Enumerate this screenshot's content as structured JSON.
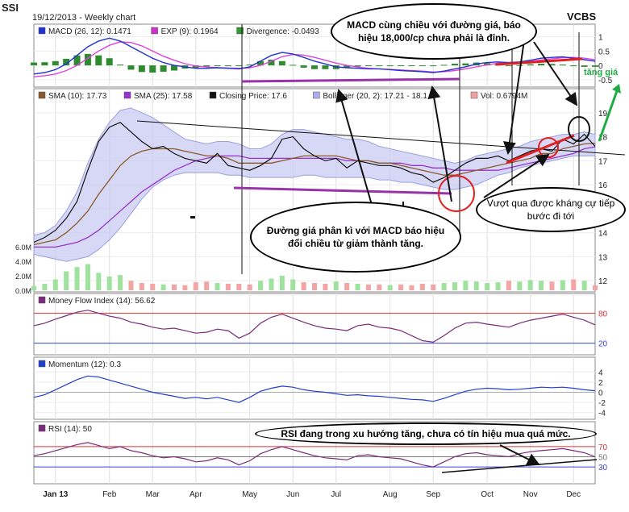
{
  "header": {
    "symbol": "SSI",
    "subtitle": "19/12/2013 - Weekly chart",
    "brand": "VCBS"
  },
  "legends": {
    "macd": [
      {
        "label": "MACD (26, 12): 0.1471",
        "color": "#2233cc"
      },
      {
        "label": "EXP (9): 0.1964",
        "color": "#cc33cc"
      },
      {
        "label": "Divergence: -0.0493",
        "color": "#339933"
      }
    ],
    "price": [
      {
        "label": "SMA (10): 17.73",
        "color": "#8b5a2b"
      },
      {
        "label": "SMA (25): 17.58",
        "color": "#9933cc"
      },
      {
        "label": "Closing Price: 17.6",
        "color": "#111111"
      },
      {
        "label": "Bollinger (20, 2): 17.21 - 18.1",
        "color": "#aab0ee"
      },
      {
        "label": "Vol: 0.6794M",
        "color": "#f0a0a0"
      }
    ],
    "mfi": "Money Flow Index (14): 56.62",
    "momentum": "Momentum (12): 0.3",
    "rsi": "RSI (14): 50"
  },
  "axis": {
    "macd_ticks": [
      "1",
      "0.5",
      "0",
      "-0.5"
    ],
    "price_ticks": [
      "19",
      "18",
      "17",
      "16",
      "15",
      "14",
      "13",
      "12"
    ],
    "volume_ticks": [
      "6.0M",
      "4.0M",
      "2.0M",
      "0.0M"
    ],
    "mfi_ticks": [
      "80",
      "20"
    ],
    "momentum_ticks": [
      "4",
      "2",
      "0",
      "-2",
      "-4"
    ],
    "rsi_ticks": [
      "70",
      "50",
      "30"
    ],
    "months": [
      "Jan 13",
      "Feb",
      "Mar",
      "Apr",
      "May",
      "Jun",
      "Jul",
      "Aug",
      "Sep",
      "Oct",
      "Nov",
      "Dec"
    ]
  },
  "annotations": {
    "macd_note": "MACD cùng chiều với đường giá, báo hiệu 18,000/cp chưa phải là đỉnh.",
    "divergence_note": "Đường giá phân kì với MACD báo hiệu đổi chiều từ giảm thành tăng.",
    "breakout_note": "Vượt qua được kháng cự tiếp bước đi tới",
    "rsi_note": "RSI đang trong xu hướng tăng, chưa có tín hiệu mua quá mức.",
    "uptrend_label": "tăng giá"
  },
  "colors": {
    "price_line": "#111111",
    "sma10": "#8b5a2b",
    "sma25": "#9933cc",
    "bollinger": "#c8cbf2",
    "vol_up": "#9ee29e",
    "vol_down": "#f3a5a5",
    "macd_line": "#2233cc",
    "signal_line": "#dd44dd",
    "hist": "#2e8b2e",
    "oscillator": "#7a2a7a",
    "momentum": "#1f3fcc",
    "annotation_red": "#e02020",
    "annotation_purple": "#9933aa",
    "uptrend_green": "#22aa44"
  },
  "chart_data": {
    "type": "line",
    "x": [
      "2012-12-21",
      "2012-12-28",
      "2013-01-04",
      "2013-01-11",
      "2013-01-18",
      "2013-01-25",
      "2013-02-01",
      "2013-02-08",
      "2013-02-15",
      "2013-02-22",
      "2013-03-01",
      "2013-03-08",
      "2013-03-15",
      "2013-03-22",
      "2013-03-29",
      "2013-04-05",
      "2013-04-12",
      "2013-04-19",
      "2013-04-26",
      "2013-05-03",
      "2013-05-10",
      "2013-05-17",
      "2013-05-24",
      "2013-05-31",
      "2013-06-07",
      "2013-06-14",
      "2013-06-21",
      "2013-06-28",
      "2013-07-05",
      "2013-07-12",
      "2013-07-19",
      "2013-07-26",
      "2013-08-02",
      "2013-08-09",
      "2013-08-16",
      "2013-08-23",
      "2013-08-30",
      "2013-09-06",
      "2013-09-13",
      "2013-09-20",
      "2013-09-27",
      "2013-10-04",
      "2013-10-11",
      "2013-10-18",
      "2013-10-25",
      "2013-11-01",
      "2013-11-08",
      "2013-11-15",
      "2013-11-22",
      "2013-11-29",
      "2013-12-06",
      "2013-12-13",
      "2013-12-19"
    ],
    "series": [
      {
        "name": "Closing Price",
        "values": [
          13.6,
          13.8,
          14.1,
          14.6,
          15.3,
          16.6,
          17.8,
          18.4,
          18.6,
          18.2,
          17.8,
          17.5,
          17.6,
          17.3,
          17.1,
          17.0,
          16.9,
          17.3,
          16.8,
          16.7,
          16.6,
          16.8,
          17.1,
          17.9,
          18.0,
          17.5,
          17.2,
          17.0,
          17.1,
          16.7,
          17.0,
          16.9,
          16.8,
          16.8,
          16.7,
          16.5,
          16.4,
          16.1,
          16.3,
          16.6,
          16.9,
          17.1,
          17.1,
          17.2,
          17.0,
          17.2,
          17.4,
          17.5,
          17.4,
          17.9,
          17.7,
          18.1,
          17.6
        ]
      },
      {
        "name": "SMA (10)",
        "values": [
          13.5,
          13.6,
          13.7,
          14.0,
          14.4,
          14.9,
          15.6,
          16.2,
          16.8,
          17.2,
          17.4,
          17.5,
          17.5,
          17.5,
          17.4,
          17.3,
          17.2,
          17.2,
          17.1,
          16.9,
          16.9,
          16.9,
          16.9,
          17.0,
          17.1,
          17.2,
          17.2,
          17.2,
          17.2,
          17.1,
          17.0,
          17.0,
          16.9,
          16.9,
          16.8,
          16.7,
          16.6,
          16.5,
          16.4,
          16.4,
          16.5,
          16.6,
          16.7,
          16.8,
          16.9,
          17.0,
          17.1,
          17.3,
          17.3,
          17.5,
          17.6,
          17.7,
          17.73
        ]
      },
      {
        "name": "SMA (25)",
        "values": [
          13.4,
          13.4,
          13.4,
          13.5,
          13.6,
          13.8,
          14.1,
          14.5,
          14.9,
          15.3,
          15.7,
          16.0,
          16.3,
          16.6,
          16.8,
          17.0,
          17.1,
          17.2,
          17.2,
          17.2,
          17.1,
          17.1,
          17.1,
          17.1,
          17.1,
          17.1,
          17.1,
          17.1,
          17.1,
          17.0,
          17.0,
          17.0,
          16.9,
          16.9,
          16.9,
          16.8,
          16.8,
          16.7,
          16.7,
          16.6,
          16.6,
          16.6,
          16.6,
          16.6,
          16.7,
          16.8,
          16.9,
          17.0,
          17.1,
          17.2,
          17.3,
          17.5,
          17.58
        ]
      },
      {
        "name": "Bollinger Upper",
        "values": [
          13.9,
          14.0,
          14.3,
          14.9,
          15.7,
          16.9,
          17.9,
          18.6,
          19.1,
          19.2,
          19.0,
          18.8,
          18.5,
          18.2,
          17.9,
          17.8,
          17.7,
          17.8,
          17.8,
          17.7,
          17.5,
          17.5,
          17.7,
          18.1,
          18.3,
          18.3,
          18.2,
          18.1,
          18.0,
          17.9,
          17.9,
          17.8,
          17.6,
          17.5,
          17.4,
          17.3,
          17.2,
          17.1,
          17.0,
          16.9,
          17.0,
          17.2,
          17.3,
          17.4,
          17.5,
          17.6,
          17.8,
          17.9,
          18.0,
          18.1,
          18.1,
          18.2,
          18.1
        ]
      },
      {
        "name": "Bollinger Lower",
        "values": [
          13.1,
          13.0,
          12.9,
          12.8,
          12.9,
          13.0,
          13.3,
          13.7,
          14.2,
          14.8,
          15.4,
          15.9,
          16.2,
          16.4,
          16.5,
          16.5,
          16.5,
          16.5,
          16.4,
          16.4,
          16.3,
          16.3,
          16.3,
          16.3,
          16.3,
          16.4,
          16.4,
          16.3,
          16.3,
          16.3,
          16.3,
          16.3,
          16.2,
          16.2,
          16.1,
          16.1,
          16.0,
          15.9,
          15.8,
          15.8,
          15.9,
          16.0,
          16.2,
          16.4,
          16.5,
          16.7,
          16.8,
          16.9,
          17.0,
          17.1,
          17.2,
          17.2,
          17.21
        ]
      },
      {
        "name": "Volume (M)",
        "values": [
          0.6,
          0.9,
          1.5,
          2.6,
          3.2,
          3.6,
          2.4,
          1.9,
          2.1,
          1.3,
          1.0,
          0.9,
          0.8,
          0.8,
          0.7,
          1.1,
          1.2,
          1.0,
          0.9,
          0.9,
          0.8,
          1.3,
          1.6,
          2.0,
          1.5,
          1.1,
          1.0,
          0.9,
          1.2,
          1.0,
          0.9,
          0.8,
          0.8,
          0.7,
          0.8,
          0.7,
          0.9,
          0.8,
          1.0,
          1.1,
          1.3,
          1.2,
          1.0,
          1.1,
          1.3,
          1.2,
          1.4,
          1.3,
          1.2,
          1.4,
          1.5,
          1.3,
          0.68
        ]
      },
      {
        "name": "MACD (26, 12)",
        "values": [
          -0.3,
          -0.25,
          -0.15,
          0.05,
          0.35,
          0.65,
          0.85,
          0.95,
          0.85,
          0.65,
          0.45,
          0.25,
          0.1,
          0.0,
          -0.05,
          -0.1,
          -0.1,
          -0.08,
          -0.1,
          -0.12,
          -0.05,
          0.15,
          0.35,
          0.45,
          0.4,
          0.28,
          0.15,
          0.05,
          -0.05,
          -0.08,
          -0.1,
          -0.12,
          -0.12,
          -0.15,
          -0.18,
          -0.2,
          -0.22,
          -0.25,
          -0.2,
          -0.12,
          -0.05,
          0.05,
          0.1,
          0.12,
          0.1,
          0.12,
          0.18,
          0.25,
          0.28,
          0.3,
          0.25,
          0.2,
          0.1471
        ]
      },
      {
        "name": "EXP (9)",
        "values": [
          -0.4,
          -0.36,
          -0.3,
          -0.18,
          0.0,
          0.25,
          0.5,
          0.7,
          0.82,
          0.8,
          0.68,
          0.5,
          0.32,
          0.18,
          0.06,
          -0.02,
          -0.06,
          -0.08,
          -0.09,
          -0.1,
          -0.08,
          0.0,
          0.15,
          0.3,
          0.38,
          0.36,
          0.28,
          0.18,
          0.08,
          0.0,
          -0.06,
          -0.1,
          -0.12,
          -0.14,
          -0.16,
          -0.18,
          -0.2,
          -0.23,
          -0.22,
          -0.18,
          -0.12,
          -0.05,
          0.02,
          0.08,
          0.1,
          0.11,
          0.14,
          0.19,
          0.23,
          0.27,
          0.28,
          0.25,
          0.1964
        ]
      },
      {
        "name": "Money Flow Index (14)",
        "values": [
          55,
          60,
          68,
          75,
          82,
          86,
          80,
          74,
          70,
          62,
          58,
          52,
          48,
          50,
          45,
          40,
          42,
          48,
          45,
          30,
          40,
          60,
          72,
          78,
          70,
          62,
          55,
          50,
          48,
          45,
          55,
          58,
          52,
          50,
          45,
          35,
          25,
          22,
          35,
          50,
          60,
          62,
          58,
          55,
          52,
          60,
          66,
          70,
          74,
          78,
          72,
          66,
          56.62
        ]
      },
      {
        "name": "Momentum (12)",
        "values": [
          -1.0,
          -0.5,
          0.5,
          1.5,
          2.5,
          3.2,
          3.0,
          2.4,
          1.8,
          1.2,
          0.6,
          0.0,
          -0.4,
          -0.8,
          -1.2,
          -1.0,
          -1.3,
          -1.0,
          -1.5,
          -2.0,
          -1.0,
          0.2,
          0.8,
          1.2,
          1.0,
          0.5,
          0.2,
          0.0,
          -0.3,
          -0.6,
          -0.5,
          -0.7,
          -0.8,
          -1.0,
          -1.2,
          -1.4,
          -1.5,
          -1.8,
          -1.2,
          -0.5,
          0.2,
          0.6,
          0.8,
          0.7,
          0.5,
          0.6,
          0.8,
          1.0,
          0.9,
          1.0,
          0.8,
          0.5,
          0.3
        ]
      },
      {
        "name": "RSI (14)",
        "values": [
          52,
          56,
          62,
          68,
          74,
          78,
          72,
          66,
          70,
          62,
          58,
          52,
          48,
          50,
          46,
          40,
          42,
          48,
          44,
          34,
          42,
          56,
          64,
          70,
          64,
          58,
          52,
          48,
          46,
          44,
          52,
          54,
          50,
          48,
          46,
          40,
          34,
          30,
          40,
          50,
          56,
          58,
          54,
          52,
          50,
          56,
          60,
          62,
          64,
          66,
          62,
          58,
          50
        ]
      }
    ],
    "panels": {
      "macd": {
        "ylim": [
          -0.7,
          1.1
        ]
      },
      "price": {
        "ylim": [
          11.6,
          19.6
        ],
        "volume_ylim": [
          0,
          8
        ]
      },
      "mfi": {
        "ylim": [
          0,
          100
        ],
        "levels": [
          80,
          20
        ]
      },
      "momentum": {
        "ylim": [
          -5,
          5
        ]
      },
      "rsi": {
        "ylim": [
          0,
          100
        ],
        "levels": [
          70,
          50,
          30
        ]
      }
    },
    "grid": true,
    "legend_position": "top-left"
  }
}
